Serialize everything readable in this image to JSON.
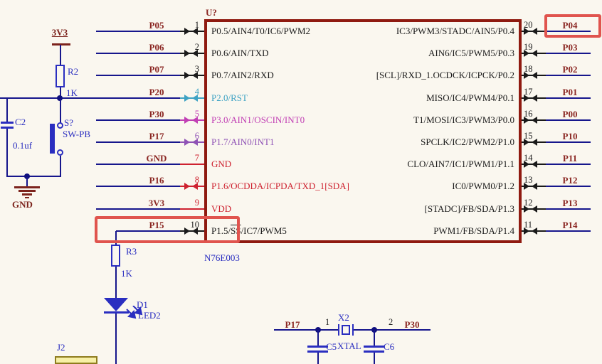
{
  "schematic": {
    "ic": {
      "designator": "U?",
      "part_number": "N76E003",
      "left_pins": [
        {
          "number": "1",
          "net": "P05",
          "name": "P0.5/AIN4/T0/IC6/PWM2",
          "color": "black"
        },
        {
          "number": "2",
          "net": "P06",
          "name": "P0.6/AIN/TXD",
          "color": "black"
        },
        {
          "number": "3",
          "net": "P07",
          "name": "P0.7/AIN2/RXD",
          "color": "black"
        },
        {
          "number": "4",
          "net": "P20",
          "name": "P2.0/RST",
          "color": "cyan"
        },
        {
          "number": "5",
          "net": "P30",
          "name": "P3.0/AIN1/OSCIN/INT0",
          "color": "magenta"
        },
        {
          "number": "6",
          "net": "P17",
          "name": "P1.7/AIN0/INT1",
          "color": "purple"
        },
        {
          "number": "7",
          "net": "GND",
          "name": "GND",
          "color": "red"
        },
        {
          "number": "8",
          "net": "P16",
          "name": "P1.6/OCDDA/ICPDA/TXD_1[SDA]",
          "color": "red"
        },
        {
          "number": "9",
          "net": "3V3",
          "name": "VDD",
          "color": "red"
        },
        {
          "number": "10",
          "net": "P15",
          "name": "P1.5/SS/IC7/PWM5",
          "color": "black",
          "overline": "SS",
          "highlighted": true
        }
      ],
      "right_pins": [
        {
          "number": "20",
          "net": "P04",
          "name": "IC3/PWM3/STADC/AIN5/P0.4",
          "color": "black",
          "highlighted": true
        },
        {
          "number": "19",
          "net": "P03",
          "name": "AIN6/IC5/PWM5/P0.3",
          "color": "black"
        },
        {
          "number": "18",
          "net": "P02",
          "name": "[SCL]/RXD_1.OCDCK/ICPCK/P0.2",
          "color": "black"
        },
        {
          "number": "17",
          "net": "P01",
          "name": "MISO/IC4/PWM4/P0.1",
          "color": "black"
        },
        {
          "number": "16",
          "net": "P00",
          "name": "T1/MOSI/IC3/PWM3/P0.0",
          "color": "black"
        },
        {
          "number": "15",
          "net": "P10",
          "name": "SPCLK/IC2/PWM2/P1.0",
          "color": "black"
        },
        {
          "number": "14",
          "net": "P11",
          "name": "CLO/AIN7/IC1/PWM1/P1.1",
          "color": "black"
        },
        {
          "number": "13",
          "net": "P12",
          "name": "IC0/PWM0/P1.2",
          "color": "black"
        },
        {
          "number": "12",
          "net": "P13",
          "name": "[STADC]/FB/SDA/P1.3",
          "color": "black"
        },
        {
          "number": "11",
          "net": "P14",
          "name": "PWM1/FB/SDA/P1.4",
          "color": "black"
        }
      ]
    },
    "reset_circuit": {
      "power_label": "3V3",
      "resistor": {
        "designator": "R2",
        "value": "1K"
      },
      "capacitor": {
        "designator": "C2",
        "value": "0.1uf"
      },
      "switch": {
        "designator": "S?",
        "value": "SW-PB"
      },
      "ground_label": "GND"
    },
    "led_circuit": {
      "resistor": {
        "designator": "R3",
        "value": "1K"
      },
      "led": {
        "designator": "D1",
        "value": "LED2"
      },
      "connector": {
        "designator": "J2"
      }
    },
    "crystal_circuit": {
      "left_net": "P17",
      "right_net": "P30",
      "crystal": {
        "designator": "X2",
        "value": "XTAL",
        "pin1": "1",
        "pin2": "2"
      },
      "cap_left": "C5",
      "cap_right": "C6"
    },
    "colors": {
      "background": "#FAF7EF",
      "ic_border": "#8F1A10",
      "wire": "#16168C",
      "net_label": "#8B2723",
      "power": "#7C231C",
      "component": "#2A2EC0",
      "highlight": "#E0544E",
      "junction": "#10107E",
      "text_black": "#222222",
      "pin_black": "#1A1A1A",
      "pin_cyan": "#3FA3C4",
      "pin_magenta": "#C13FB4",
      "pin_purple": "#8F52B5",
      "pin_red": "#CE2230",
      "connector_fill": "#F7F0A6",
      "connector_border": "#8E7C1E"
    }
  }
}
